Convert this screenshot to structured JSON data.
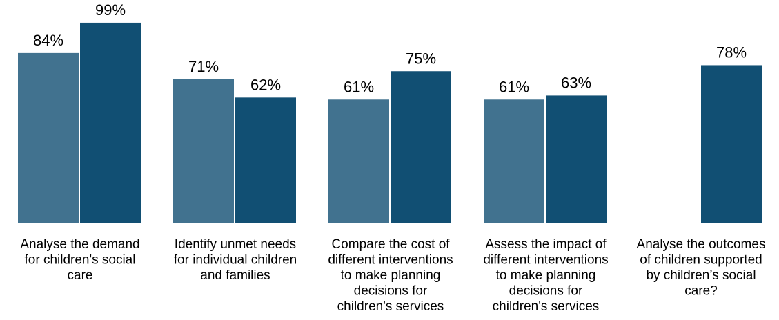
{
  "colors": {
    "series_1": "#41728F",
    "series_2": "#114F73",
    "background": "#FFFFFF",
    "text": "#000000"
  },
  "chart_data": {
    "type": "bar",
    "categories": [
      "Analyse the demand for children's social care",
      "Identify unmet needs for individual children and families",
      "Compare the cost of different interventions to make planning decisions for children's services",
      "Assess the impact of different interventions to make planning decisions for children's services",
      "Analyse the outcomes of children supported by children’s social care?"
    ],
    "category_lines": [
      [
        "Analyse the demand",
        "for children's social",
        "care"
      ],
      [
        "Identify unmet needs",
        "for individual children",
        "and families"
      ],
      [
        "Compare the cost of",
        "different interventions",
        "to make planning",
        "decisions for",
        "children's services"
      ],
      [
        "Assess the impact of",
        "different interventions",
        "to make planning",
        "decisions for",
        "children's services"
      ],
      [
        "Analyse the outcomes",
        "of children supported",
        "by children’s social",
        "care?"
      ]
    ],
    "series": [
      {
        "values": [
          84,
          71,
          61,
          61,
          null
        ]
      },
      {
        "values": [
          99,
          62,
          75,
          63,
          78
        ]
      }
    ],
    "data_labels": [
      [
        "84%",
        "71%",
        "61%",
        "61%",
        ""
      ],
      [
        "99%",
        "62%",
        "75%",
        "63%",
        "78%"
      ]
    ],
    "ylim": [
      0,
      100
    ],
    "grid": false,
    "legend": "none",
    "title": "",
    "xlabel": "",
    "ylabel": ""
  }
}
